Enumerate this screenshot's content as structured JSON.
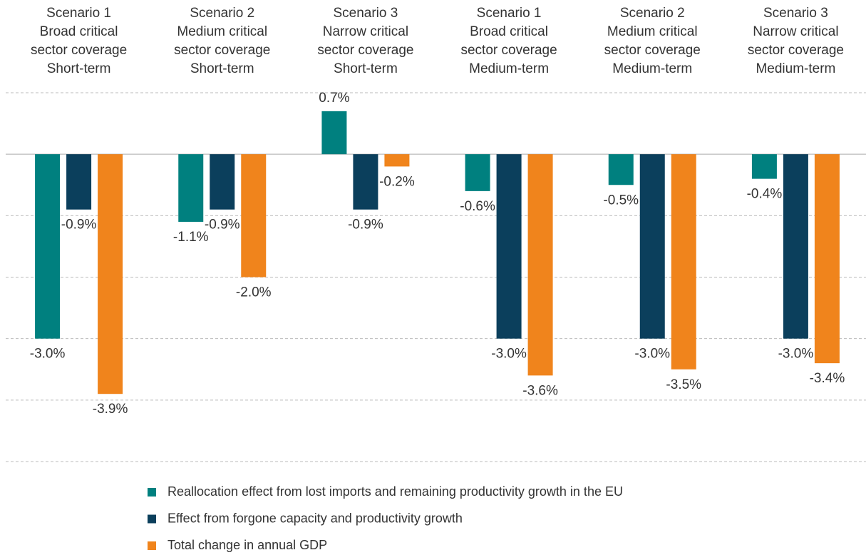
{
  "chart_data": {
    "type": "bar",
    "categories": [
      "Scenario 1\nBroad critical\nsector coverage\nShort-term",
      "Scenario 2\nMedium critical\nsector coverage\nShort-term",
      "Scenario 3\nNarrow critical\nsector coverage\nShort-term",
      "Scenario 1\nBroad critical\nsector coverage\nMedium-term",
      "Scenario 2\nMedium critical\nsector coverage\nMedium-term",
      "Scenario 3\nNarrow critical\nsector coverage\nMedium-term"
    ],
    "series": [
      {
        "name": "Reallocation effect from lost imports and remaining productivity growth in the EU",
        "color": "#00807f",
        "values": [
          -3.0,
          -1.1,
          0.7,
          -0.6,
          -0.5,
          -0.4
        ],
        "value_labels": [
          "-3.0%",
          "-1.1%",
          "0.7%",
          "-0.6%",
          "-0.5%",
          "-0.4%"
        ]
      },
      {
        "name": "Effect from forgone capacity and productivity growth",
        "color": "#0b3f5c",
        "values": [
          -0.9,
          -0.9,
          -0.9,
          -3.0,
          -3.0,
          -3.0
        ],
        "value_labels": [
          "-0.9%",
          "-0.9%",
          "-0.9%",
          "-3.0%",
          "-3.0%",
          "-3.0%"
        ]
      },
      {
        "name": "Total change in annual GDP",
        "color": "#f0841c",
        "values": [
          -3.9,
          -2.0,
          -0.2,
          -3.6,
          -3.5,
          -3.4
        ],
        "value_labels": [
          "-3.9%",
          "-2.0%",
          "-0.2%",
          "-3.6%",
          "-3.5%",
          "-3.4%"
        ]
      }
    ],
    "ylim": [
      -5,
      1
    ],
    "yticks": [
      -5,
      -4,
      -3,
      -2,
      -1,
      0,
      1
    ],
    "grid": true
  }
}
